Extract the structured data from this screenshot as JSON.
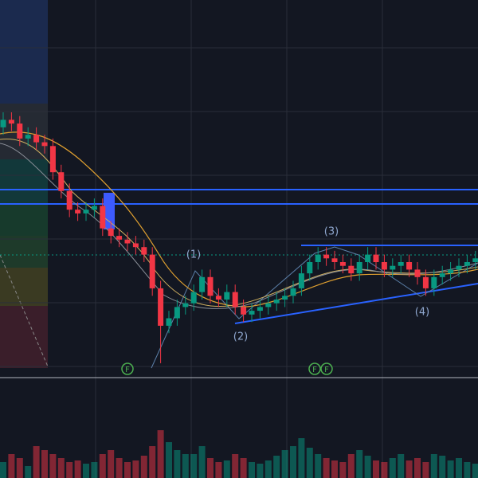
{
  "chart_data": {
    "type": "candlestick",
    "up_color": "#089981",
    "down_color": "#f23645",
    "ylim": [
      0,
      100
    ],
    "open": [
      66,
      68,
      67,
      63,
      64,
      62,
      61,
      54,
      49,
      44,
      43,
      44,
      45,
      39,
      37,
      36,
      35,
      34,
      32,
      23,
      13,
      15,
      18,
      19,
      22,
      26,
      21,
      20,
      22,
      18,
      16,
      17,
      18,
      19,
      20,
      21,
      23,
      27,
      30,
      32,
      31,
      30,
      29,
      27,
      30,
      32,
      30,
      28,
      29,
      30,
      28,
      26,
      23,
      26,
      27,
      28,
      29,
      30
    ],
    "high": [
      70,
      70,
      69,
      66,
      66,
      64,
      63,
      56,
      51,
      46,
      46,
      47,
      47,
      41,
      39,
      38,
      37,
      36,
      34,
      25,
      17,
      20,
      21,
      24,
      28,
      28,
      23,
      24,
      24,
      20,
      19,
      20,
      21,
      22,
      23,
      25,
      29,
      32,
      34,
      34,
      33,
      32,
      31,
      32,
      34,
      34,
      32,
      31,
      32,
      32,
      30,
      28,
      28,
      29,
      30,
      31,
      32,
      33
    ],
    "low": [
      64,
      65,
      61,
      61,
      60,
      59,
      52,
      47,
      42,
      41,
      41,
      42,
      37,
      35,
      34,
      33,
      32,
      30,
      21,
      3,
      11,
      13,
      16,
      17,
      20,
      19,
      18,
      18,
      16,
      14,
      14,
      15,
      16,
      17,
      18,
      19,
      21,
      25,
      28,
      29,
      28,
      27,
      25,
      25,
      28,
      28,
      26,
      26,
      27,
      26,
      24,
      21,
      21,
      24,
      25,
      26,
      27,
      28
    ],
    "close": [
      68,
      67,
      63,
      64,
      62,
      61,
      54,
      49,
      44,
      43,
      44,
      45,
      39,
      37,
      36,
      35,
      34,
      32,
      23,
      13,
      15,
      18,
      19,
      22,
      26,
      21,
      20,
      22,
      18,
      16,
      17,
      18,
      19,
      20,
      21,
      23,
      27,
      30,
      32,
      31,
      30,
      29,
      27,
      30,
      32,
      30,
      28,
      29,
      30,
      28,
      26,
      23,
      26,
      27,
      28,
      29,
      30,
      31
    ],
    "volume": {
      "ylim": [
        0,
        80
      ],
      "values": [
        20,
        30,
        25,
        15,
        40,
        35,
        30,
        25,
        20,
        22,
        18,
        20,
        30,
        35,
        25,
        20,
        22,
        28,
        40,
        60,
        45,
        35,
        30,
        30,
        40,
        25,
        20,
        22,
        30,
        25,
        20,
        18,
        22,
        28,
        35,
        40,
        50,
        38,
        30,
        25,
        22,
        20,
        30,
        35,
        28,
        22,
        20,
        25,
        30,
        22,
        25,
        20,
        30,
        28,
        22,
        25,
        20,
        18
      ]
    },
    "annotations": [
      "(1)",
      "(2)",
      "(3)",
      "(4)",
      "F",
      "F",
      "F"
    ]
  }
}
